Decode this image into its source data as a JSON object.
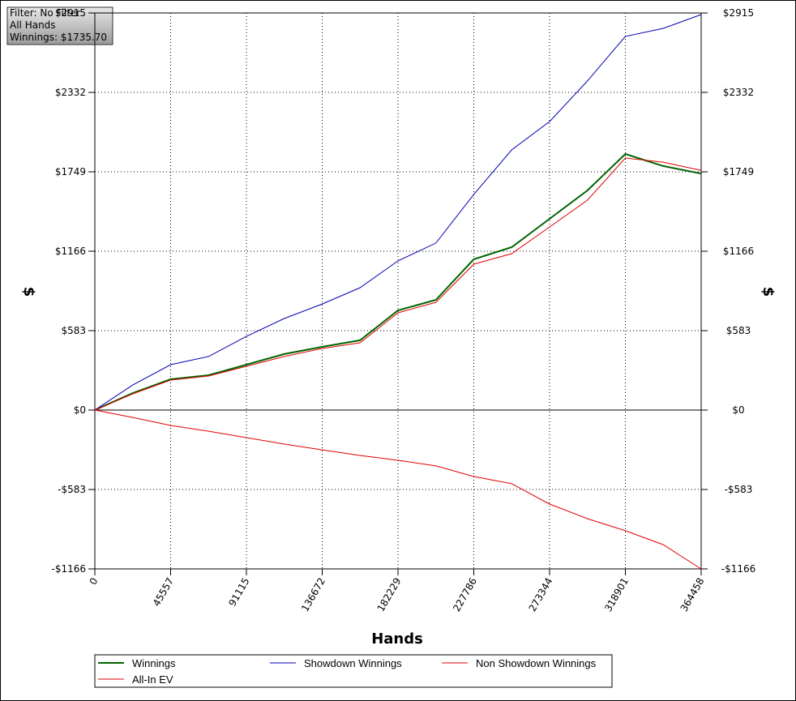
{
  "chart_data": {
    "type": "line",
    "annotations": [
      "Filter: No Filter",
      "All Hands",
      "Winnings: $1735.70"
    ],
    "x_label": "Hands",
    "y_label": "$",
    "y2_label": "$",
    "x": [
      0,
      22779,
      45557,
      68336,
      91115,
      113893,
      136672,
      159450,
      182229,
      205008,
      227786,
      250565,
      273344,
      296122,
      318901,
      341679,
      364458
    ],
    "xlim": [
      0,
      364458
    ],
    "xticks": [
      0,
      45557,
      91115,
      136672,
      182229,
      227786,
      273344,
      318901,
      364458
    ],
    "ylim": [
      -1166,
      2915
    ],
    "yticks": [
      {
        "value": -1166,
        "label": "-$1166"
      },
      {
        "value": -583,
        "label": "-$583"
      },
      {
        "value": 0,
        "label": "$0"
      },
      {
        "value": 583,
        "label": "$583"
      },
      {
        "value": 1166,
        "label": "$1166"
      },
      {
        "value": 1749,
        "label": "$1749"
      },
      {
        "value": 2332,
        "label": "$2332"
      },
      {
        "value": 2915,
        "label": "$2915"
      }
    ],
    "grid": true,
    "series": [
      {
        "name": "Winnings",
        "color": "#006400",
        "values": [
          0,
          125,
          226,
          256,
          333,
          411,
          464,
          512,
          732,
          809,
          1107,
          1196,
          1404,
          1612,
          1880,
          1791,
          1736
        ]
      },
      {
        "name": "Showdown Winnings",
        "color": "#0000b4",
        "values": [
          0,
          184,
          333,
          393,
          541,
          672,
          779,
          898,
          1095,
          1226,
          1583,
          1910,
          2118,
          2416,
          2743,
          2802,
          2903
        ]
      },
      {
        "name": "Non Showdown Winnings",
        "color": "#e00000",
        "values": [
          0,
          -54,
          -113,
          -155,
          -202,
          -250,
          -292,
          -333,
          -369,
          -410,
          -488,
          -541,
          -690,
          -797,
          -886,
          -988,
          -1166
        ]
      },
      {
        "name": "All-In EV",
        "color": "#e00000",
        "values": [
          0,
          119,
          220,
          250,
          321,
          393,
          452,
          494,
          714,
          791,
          1071,
          1148,
          1344,
          1541,
          1850,
          1820,
          1760
        ]
      }
    ]
  }
}
